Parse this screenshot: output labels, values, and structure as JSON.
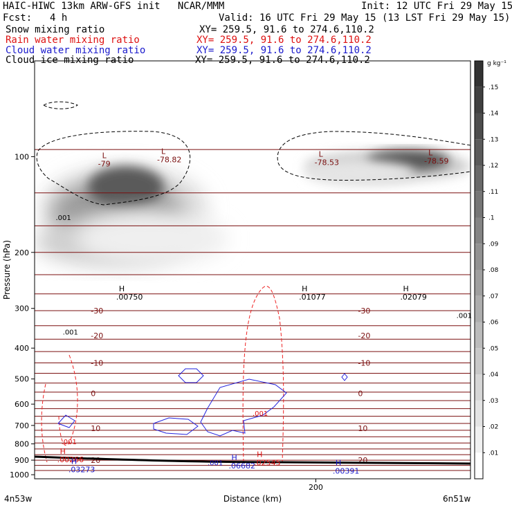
{
  "header": {
    "title": "HAIC-HIWC 13km ARW-GFS init   NCAR/MMM",
    "init": "Init: 12 UTC Fri 29 May 15",
    "fcst_label": "Fcst:",
    "fcst_value": "4 h",
    "valid": "Valid: 16 UTC Fri 29 May 15 (13 LST Fri 29 May 15)"
  },
  "fields": [
    {
      "name": "Snow mixing ratio",
      "xy": "XY= 259.5, 91.6 to 274.6,110.2",
      "color": "#000000"
    },
    {
      "name": "Rain water mixing ratio",
      "xy": "XY= 259.5, 91.6 to 274.6,110.2",
      "color": "#dd1111"
    },
    {
      "name": "Cloud water mixing ratio",
      "xy": "XY= 259.5, 91.6 to 274.6,110.2",
      "color": "#1a1acc"
    },
    {
      "name": "Cloud ice mixing ratio",
      "xy": "XY= 259.5, 91.6 to 274.6,110.2",
      "color": "#000000"
    }
  ],
  "colorbar": {
    "unit": "g kg⁻¹",
    "ticks": [
      ".01",
      ".02",
      ".03",
      ".04",
      ".05",
      ".06",
      ".07",
      ".08",
      ".09",
      ".1",
      ".11",
      ".12",
      ".13",
      ".14",
      ".15"
    ]
  },
  "chart_data": {
    "type": "contour-cross-section",
    "xlabel": "Distance (km)",
    "ylabel": "Pressure (hPa)",
    "x_ticks": [
      {
        "value": 200,
        "label": "200"
      }
    ],
    "y_ticks": [
      100,
      200,
      300,
      400,
      500,
      600,
      700,
      800,
      900,
      1000
    ],
    "y_scale": "log",
    "x_range": [
      0,
      310
    ],
    "y_range": [
      50,
      1030
    ],
    "left_end_label": "4n53w",
    "right_end_label": "6n51w",
    "temperature_lines": [
      {
        "label": "-79",
        "x": 50,
        "p": 103,
        "marker": "L"
      },
      {
        "label": "-78.82",
        "x": 92,
        "p": 100,
        "marker": "L"
      },
      {
        "label": "-78.53",
        "x": 204,
        "p": 102,
        "marker": "L"
      },
      {
        "label": "-78.59",
        "x": 282,
        "p": 101,
        "marker": "L"
      },
      {
        "label": "-30",
        "p": 305
      },
      {
        "label": "-20",
        "p": 365
      },
      {
        "label": "-10",
        "p": 445
      },
      {
        "label": "0",
        "p": 555
      },
      {
        "label": "10",
        "p": 715
      },
      {
        "label": "20",
        "p": 900
      }
    ],
    "snow_maxima": [
      {
        "value": ".00750",
        "x": 60,
        "p": 265
      },
      {
        "value": ".01077",
        "x": 190,
        "p": 265
      },
      {
        "value": ".02079",
        "x": 262,
        "p": 265
      }
    ],
    "rain_maxima": [
      {
        "value": ".00266",
        "x": 18,
        "p": 860
      },
      {
        "value": ".02545",
        "x": 158,
        "p": 880
      }
    ],
    "cloud_water_maxima": [
      {
        "value": ".03273",
        "x": 26,
        "p": 925
      },
      {
        "value": ".06682",
        "x": 140,
        "p": 900
      },
      {
        "value": ".00391",
        "x": 214,
        "p": 935
      }
    ],
    "contour_labels": [
      {
        "value": ".001",
        "field": "ice",
        "x": 15,
        "p": 155
      },
      {
        "value": ".001",
        "field": "ice",
        "x": 20,
        "p": 355
      },
      {
        "value": ".001",
        "field": "ice",
        "x": 300,
        "p": 315
      },
      {
        "value": ".001",
        "field": "rain",
        "x": 19,
        "p": 785
      },
      {
        "value": ".001",
        "field": "rain",
        "x": 155,
        "p": 640
      },
      {
        "value": ".001",
        "field": "cloud",
        "x": 123,
        "p": 916
      }
    ]
  }
}
